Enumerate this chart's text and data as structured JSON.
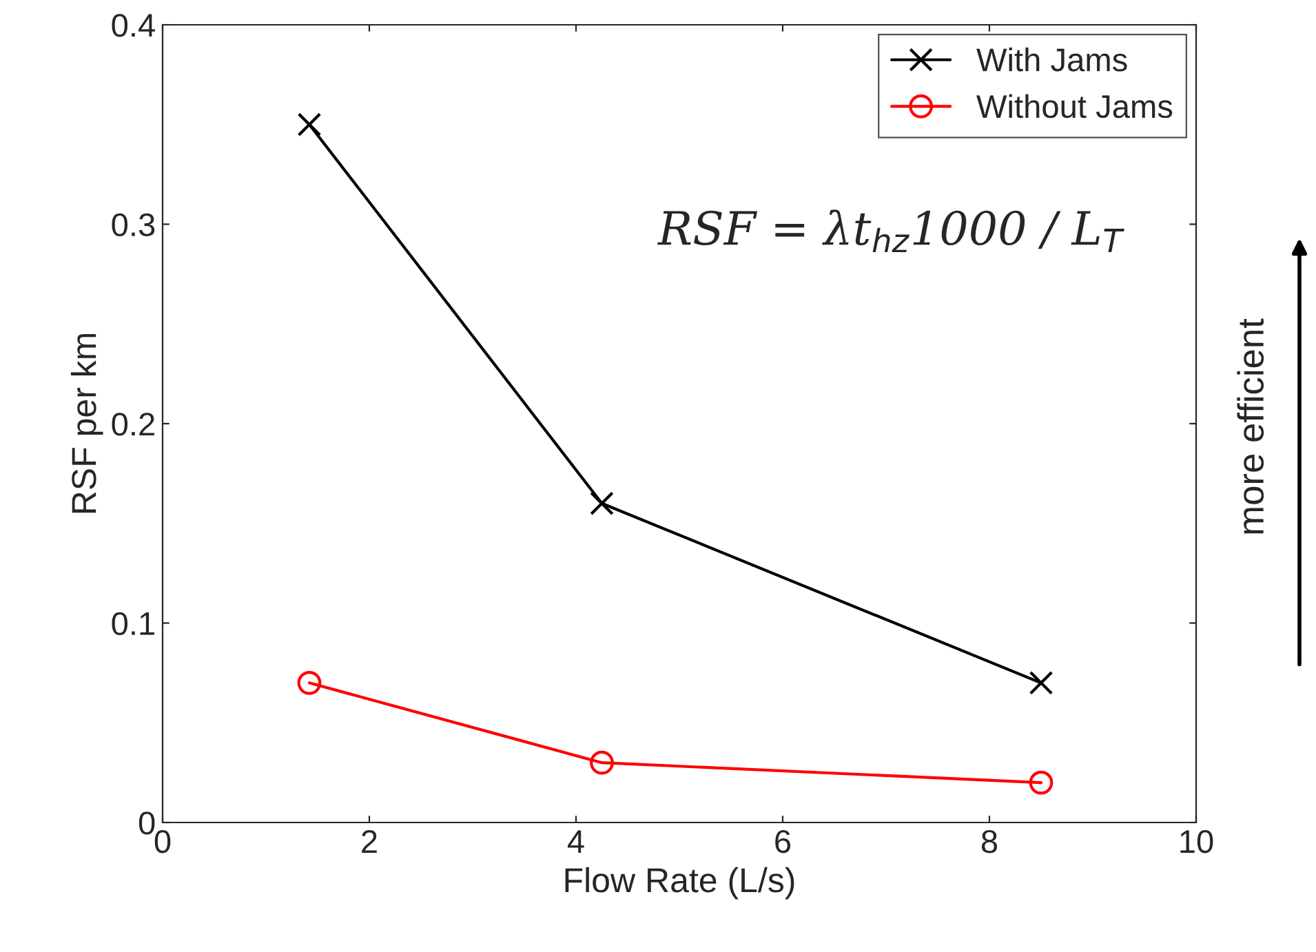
{
  "chart_data": {
    "type": "line",
    "xlabel": "Flow Rate (L/s)",
    "ylabel": "RSF per km",
    "x": [
      1.42,
      4.25,
      8.5
    ],
    "series": [
      {
        "name": "With Jams",
        "color": "#000000",
        "marker": "cross",
        "values": [
          0.35,
          0.16,
          0.07
        ]
      },
      {
        "name": "Without Jams",
        "color": "#ff0000",
        "marker": "circle",
        "values": [
          0.07,
          0.03,
          0.02
        ]
      }
    ],
    "xlim": [
      0,
      10
    ],
    "xticks": [
      0,
      2,
      4,
      6,
      8,
      10
    ],
    "ylim": [
      0,
      0.4
    ],
    "yticks": [
      0,
      0.1,
      0.2,
      0.3,
      0.4
    ],
    "grid": false,
    "legend": "top right",
    "line_style": "solid",
    "annotations": [
      "RSF = λt$_{hz}$1000 / L$_{T}$",
      "more efficient"
    ]
  }
}
